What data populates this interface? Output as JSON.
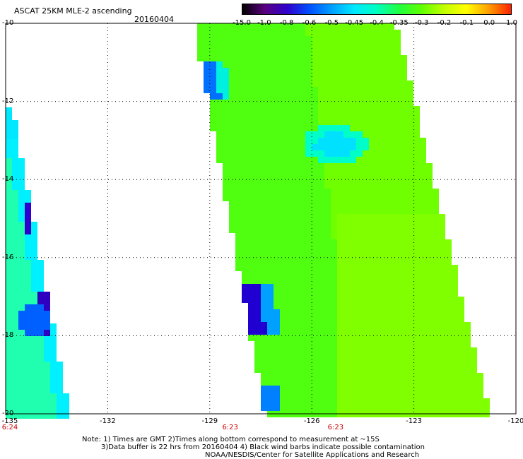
{
  "header": {
    "title": "ASCAT 25KM MLE-2 ascending",
    "date": "20160404"
  },
  "colorbar": {
    "labels": [
      "-15.0",
      "-1.0",
      "-0.8",
      "-0.6",
      "-0.5",
      "-0.45",
      "-0.4",
      "-0.35",
      "-0.3",
      "-0.2",
      "-0.1",
      "0.0",
      "1.0"
    ],
    "colors": [
      "#000000",
      "#5a0080",
      "#3000cc",
      "#0050ff",
      "#00a0ff",
      "#00e8ff",
      "#00ffc0",
      "#20ff40",
      "#60ff00",
      "#c0ff00",
      "#ffff00",
      "#ffa000",
      "#ff2000"
    ]
  },
  "axes": {
    "y_labels": [
      "-10",
      "-12",
      "-14",
      "-16",
      "-18",
      "-20"
    ],
    "x_labels": [
      "-135",
      "-132",
      "-129",
      "-126",
      "-123",
      "-120"
    ],
    "lat_range": [
      -20,
      -10
    ],
    "lon_range": [
      -135,
      -120
    ],
    "grid": true
  },
  "time_labels": [
    {
      "lon": -135,
      "text": "6:24"
    },
    {
      "lon": -128.4,
      "text": "6:23"
    },
    {
      "lon": -125.3,
      "text": "6:23"
    }
  ],
  "notes": {
    "line1": "Note: 1) Times are GMT 2)Times along bottom correspond to measurement at ~15S",
    "line2": "3)Data buffer is 22 hrs from 20160404 4) Black wind barbs indicate possible contamination",
    "line3": "NOAA/NESDIS/Center for Satellite Applications and Research"
  },
  "colors": {
    "swath_base": "#55ff00",
    "swath_light": "#88ff00",
    "cyan": "#00ffe0",
    "blue": "#0070ff",
    "deep_blue": "#2000d0",
    "grid": "#000000",
    "time_label": "#cc0000"
  }
}
